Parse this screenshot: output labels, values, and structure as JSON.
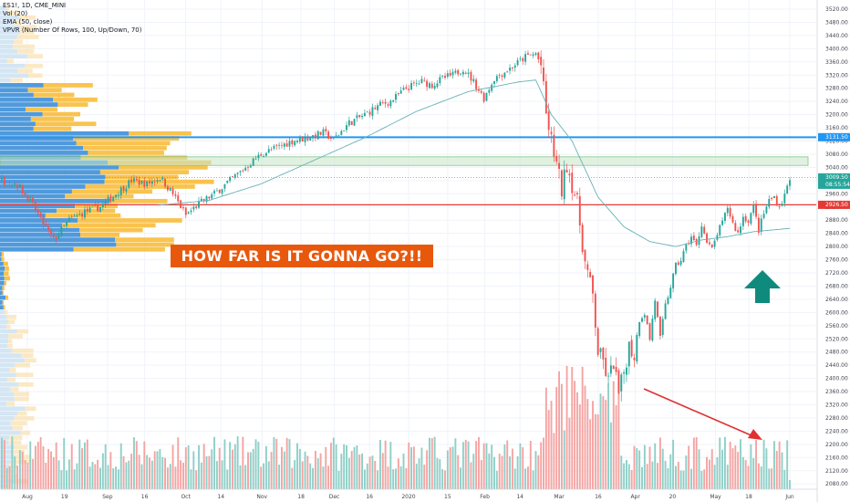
{
  "legend": {
    "line1": "ES1!, 1D, CME_MINI",
    "line2": "Vol (20)",
    "line3": "EMA (50, close)",
    "line4": "VPVR (Number Of Rows, 100, Up/Down, 70)"
  },
  "annotation": {
    "text": "HOW FAR IS IT GONNA GO?!!"
  },
  "colors": {
    "up": "#26a69a",
    "down": "#ef5350",
    "ema": "#66b2b8",
    "banner": "#e8580c",
    "arrow_up": "#0f8b7e",
    "arrow_down": "#e03030",
    "h_blue": "#2196f3",
    "h_red": "#e53935",
    "zone": "#c8e6c9"
  },
  "price_tags": {
    "blue": "3131.50",
    "current_price": "3009.50",
    "countdown": "08:55:54",
    "red": "2926.50"
  },
  "chart_data": {
    "type": "candlestick",
    "y_ticks": [
      "3520.00",
      "3480.00",
      "3440.00",
      "3400.00",
      "3360.00",
      "3320.00",
      "3280.00",
      "3240.00",
      "3200.00",
      "3160.00",
      "3120.00",
      "3080.00",
      "3040.00",
      "3000.00",
      "2960.00",
      "2920.00",
      "2880.00",
      "2840.00",
      "2800.00",
      "2760.00",
      "2720.00",
      "2680.00",
      "2640.00",
      "2600.00",
      "2560.00",
      "2520.00",
      "2480.00",
      "2440.00",
      "2400.00",
      "2360.00",
      "2320.00",
      "2280.00",
      "2240.00",
      "2200.00",
      "2160.00",
      "2120.00",
      "2080.00"
    ],
    "x_ticks": [
      "Aug",
      "19",
      "Sep",
      "16",
      "Oct",
      "14",
      "Nov",
      "18",
      "Dec",
      "16",
      "2020",
      "15",
      "Feb",
      "14",
      "Mar",
      "16",
      "Apr",
      "20",
      "May",
      "18",
      "Jun"
    ],
    "ylim": [
      2066,
      3530
    ],
    "horizontal_levels": [
      3131.5,
      2926.5
    ],
    "zone": [
      3046,
      3072
    ],
    "close_anchor_points": [
      [
        0,
        3000
      ],
      [
        6,
        2990
      ],
      [
        12,
        2925
      ],
      [
        16,
        2870
      ],
      [
        20,
        2820
      ],
      [
        26,
        2880
      ],
      [
        32,
        2905
      ],
      [
        38,
        2920
      ],
      [
        44,
        2960
      ],
      [
        50,
        3000
      ],
      [
        56,
        2990
      ],
      [
        61,
        3010
      ],
      [
        66,
        2960
      ],
      [
        71,
        2895
      ],
      [
        76,
        2930
      ],
      [
        82,
        2960
      ],
      [
        88,
        3000
      ],
      [
        94,
        3040
      ],
      [
        100,
        3080
      ],
      [
        106,
        3100
      ],
      [
        112,
        3120
      ],
      [
        118,
        3130
      ],
      [
        124,
        3145
      ],
      [
        128,
        3125
      ],
      [
        134,
        3175
      ],
      [
        140,
        3200
      ],
      [
        146,
        3230
      ],
      [
        150,
        3240
      ],
      [
        156,
        3280
      ],
      [
        162,
        3300
      ],
      [
        166,
        3290
      ],
      [
        170,
        3310
      ],
      [
        174,
        3320
      ],
      [
        178,
        3340
      ],
      [
        182,
        3300
      ],
      [
        186,
        3250
      ],
      [
        190,
        3310
      ],
      [
        196,
        3340
      ],
      [
        202,
        3375
      ],
      [
        206,
        3385
      ],
      [
        208,
        3350
      ],
      [
        210,
        3200
      ],
      [
        212,
        3120
      ],
      [
        214,
        3050
      ],
      [
        216,
        2970
      ],
      [
        218,
        3050
      ],
      [
        220,
        2990
      ],
      [
        222,
        2930
      ],
      [
        225,
        2750
      ],
      [
        228,
        2650
      ],
      [
        230,
        2480
      ],
      [
        232,
        2450
      ],
      [
        234,
        2390
      ],
      [
        236,
        2450
      ],
      [
        238,
        2350
      ],
      [
        240,
        2420
      ],
      [
        242,
        2500
      ],
      [
        244,
        2470
      ],
      [
        246,
        2580
      ],
      [
        248,
        2600
      ],
      [
        250,
        2520
      ],
      [
        252,
        2640
      ],
      [
        254,
        2520
      ],
      [
        256,
        2620
      ],
      [
        258,
        2680
      ],
      [
        260,
        2740
      ],
      [
        262,
        2760
      ],
      [
        264,
        2800
      ],
      [
        266,
        2830
      ],
      [
        268,
        2800
      ],
      [
        270,
        2870
      ],
      [
        272,
        2810
      ],
      [
        274,
        2790
      ],
      [
        276,
        2840
      ],
      [
        278,
        2870
      ],
      [
        280,
        2920
      ],
      [
        282,
        2870
      ],
      [
        284,
        2840
      ],
      [
        286,
        2890
      ],
      [
        288,
        2880
      ],
      [
        290,
        2920
      ],
      [
        292,
        2850
      ],
      [
        294,
        2900
      ],
      [
        296,
        2940
      ],
      [
        298,
        2950
      ],
      [
        300,
        2920
      ],
      [
        302,
        2955
      ],
      [
        304,
        3009.5
      ]
    ],
    "ema_anchor_points": [
      [
        60,
        2925
      ],
      [
        80,
        2940
      ],
      [
        100,
        2990
      ],
      [
        120,
        3060
      ],
      [
        140,
        3130
      ],
      [
        160,
        3210
      ],
      [
        180,
        3270
      ],
      [
        200,
        3300
      ],
      [
        206,
        3305
      ],
      [
        212,
        3200
      ],
      [
        220,
        3120
      ],
      [
        230,
        2950
      ],
      [
        240,
        2860
      ],
      [
        250,
        2815
      ],
      [
        260,
        2800
      ],
      [
        270,
        2820
      ],
      [
        280,
        2830
      ],
      [
        290,
        2845
      ],
      [
        304,
        2855
      ]
    ],
    "volume_note": "volume bars in thousands, up/down colored",
    "vpvr": "volume profile histogram on left edge"
  }
}
